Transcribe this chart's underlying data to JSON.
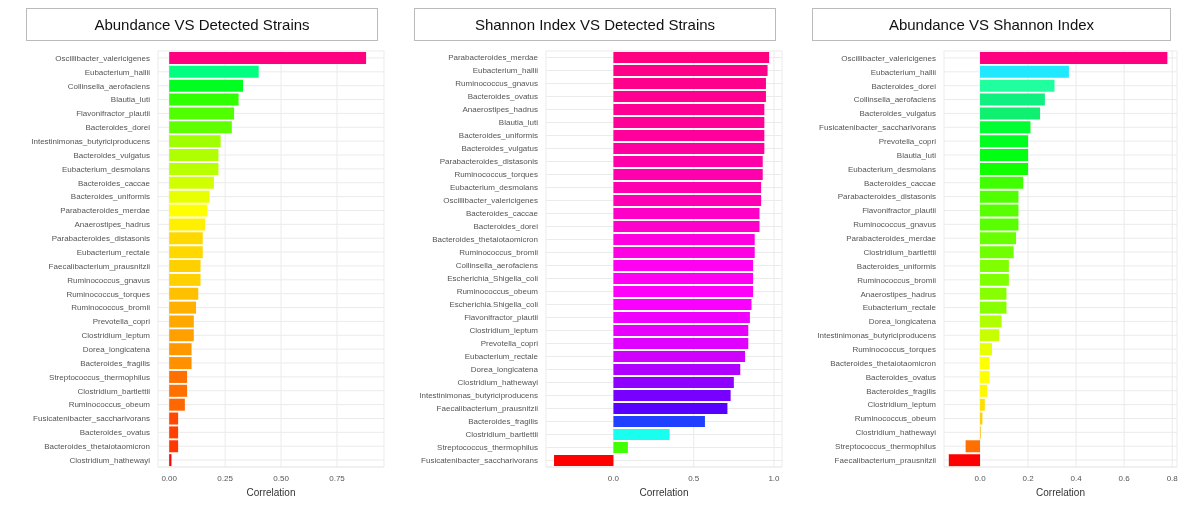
{
  "chart_data": [
    {
      "type": "bar",
      "orientation": "horizontal",
      "title": "Abundance VS Detected Strains",
      "xlabel": "Correlation",
      "grid": true,
      "categories": [
        "Oscillibacter_valericigenes",
        "Eubacterium_hallii",
        "Collinsella_aerofaciens",
        "Blautia_luti",
        "Flavonifractor_plautii",
        "Bacteroides_dorei",
        "Intestinimonas_butyriciproducens",
        "Bacteroides_vulgatus",
        "Eubacterium_desmolans",
        "Bacteroides_caccae",
        "Bacteroides_uniformis",
        "Parabacteroides_merdae",
        "Anaerostipes_hadrus",
        "Parabacteroides_distasonis",
        "Eubacterium_rectale",
        "Faecalibacterium_prausnitzii",
        "Ruminococcus_gnavus",
        "Ruminococcus_torques",
        "Ruminococcus_bromii",
        "Prevotella_copri",
        "Clostridium_leptum",
        "Dorea_longicatena",
        "Bacteroides_fragilis",
        "Streptococcus_thermophilus",
        "Clostridium_bartlettii",
        "Ruminococcus_obeum",
        "Fusicatenibacter_saccharivorans",
        "Bacteroides_ovatus",
        "Bacteroides_thetaiotaomicron",
        "Clostridium_hathewayi"
      ],
      "values": [
        0.88,
        0.4,
        0.33,
        0.31,
        0.29,
        0.28,
        0.23,
        0.22,
        0.22,
        0.2,
        0.18,
        0.17,
        0.16,
        0.15,
        0.15,
        0.14,
        0.14,
        0.13,
        0.12,
        0.11,
        0.11,
        0.1,
        0.1,
        0.08,
        0.08,
        0.07,
        0.04,
        0.04,
        0.04,
        0.01
      ],
      "colors": [
        "#ff0080",
        "#00ff80",
        "#00ff20",
        "#30ff00",
        "#50ff00",
        "#60ff00",
        "#a0ff00",
        "#b0ff00",
        "#b8ff00",
        "#d0ff00",
        "#e8ff00",
        "#ffff00",
        "#fff000",
        "#ffd800",
        "#ffd800",
        "#ffd000",
        "#ffd000",
        "#ffc000",
        "#ffb000",
        "#ffa800",
        "#ffa000",
        "#ff9800",
        "#ff9000",
        "#ff7000",
        "#ff7000",
        "#ff6800",
        "#ff4800",
        "#ff4000",
        "#ff3800",
        "#ff0000"
      ],
      "xlim": [
        -0.05,
        0.96
      ],
      "xticks": [
        {
          "value": 0,
          "label": "0.00"
        },
        0.25,
        {
          "value": 0.5,
          "label": "0.50"
        },
        0.75
      ]
    },
    {
      "type": "bar",
      "orientation": "horizontal",
      "title": "Shannon Index VS Detected Strains",
      "xlabel": "Correlation",
      "grid": true,
      "categories": [
        "Parabacteroides_merdae",
        "Eubacterium_hallii",
        "Ruminococcus_gnavus",
        "Bacteroides_ovatus",
        "Anaerostipes_hadrus",
        "Blautia_luti",
        "Bacteroides_uniformis",
        "Bacteroides_vulgatus",
        "Parabacteroides_distasonis",
        "Ruminococcus_torques",
        "Eubacterium_desmolans",
        "Oscillibacter_valericigenes",
        "Bacteroides_caccae",
        "Bacteroides_dorei",
        "Bacteroides_thetaiotaomicron",
        "Ruminococcus_bromii",
        "Collinsella_aerofaciens",
        "Escherichia_Shigella_coli",
        "Ruminococcus_obeum",
        "Escherichia.Shigella_coli",
        "Flavonifractor_plautii",
        "Clostridium_leptum",
        "Prevotella_copri",
        "Eubacterium_rectale",
        "Dorea_longicatena",
        "Clostridium_hathewayi",
        "Intestinimonas_butyriciproducens",
        "Faecalibacterium_prausnitzii",
        "Bacteroides_fragilis",
        "Clostridium_bartlettii",
        "Streptococcus_thermophilus",
        "Fusicatenibacter_saccharivorans"
      ],
      "values": [
        0.97,
        0.96,
        0.95,
        0.95,
        0.94,
        0.94,
        0.94,
        0.94,
        0.93,
        0.93,
        0.92,
        0.92,
        0.91,
        0.91,
        0.88,
        0.88,
        0.87,
        0.87,
        0.87,
        0.86,
        0.85,
        0.84,
        0.84,
        0.82,
        0.79,
        0.75,
        0.73,
        0.71,
        0.57,
        0.35,
        0.09,
        -0.37
      ],
      "colors": [
        "#ff0080",
        "#ff0088",
        "#ff008c",
        "#ff0090",
        "#ff0094",
        "#ff0098",
        "#ff009c",
        "#ff00a0",
        "#ff00a8",
        "#ff00ac",
        "#ff00b0",
        "#ff00b4",
        "#ff00c8",
        "#ff00cc",
        "#ff00e0",
        "#ff00e4",
        "#ff00f0",
        "#ff00f4",
        "#ff00f8",
        "#fa00ff",
        "#f000ff",
        "#e800ff",
        "#e000ff",
        "#d000ff",
        "#b000ff",
        "#9000ff",
        "#7800ff",
        "#5800ff",
        "#2040ff",
        "#18fff0",
        "#40ff00",
        "#ff0000"
      ],
      "xlim": [
        -0.42,
        1.05
      ],
      "xticks": [
        {
          "value": 0,
          "label": "0.0"
        },
        0.5,
        {
          "value": 1,
          "label": "1.0"
        }
      ]
    },
    {
      "type": "bar",
      "orientation": "horizontal",
      "title": "Abundance VS Shannon Index",
      "xlabel": "Correlation",
      "grid": true,
      "categories": [
        "Oscillibacter_valericigenes",
        "Eubacterium_hallii",
        "Bacteroides_dorei",
        "Collinsella_aerofaciens",
        "Bacteroides_vulgatus",
        "Fusicatenibacter_saccharivorans",
        "Prevotella_copri",
        "Blautia_luti",
        "Eubacterium_desmolans",
        "Bacteroides_caccae",
        "Parabacteroides_distasonis",
        "Flavonifractor_plautii",
        "Ruminococcus_gnavus",
        "Parabacteroides_merdae",
        "Clostridium_bartlettii",
        "Bacteroides_uniformis",
        "Ruminococcus_bromii",
        "Anaerostipes_hadrus",
        "Eubacterium_rectale",
        "Dorea_longicatena",
        "Intestinimonas_butyriciproducens",
        "Ruminococcus_torques",
        "Bacteroides_thetaiotaomicron",
        "Bacteroides_ovatus",
        "Bacteroides_fragilis",
        "Clostridium_leptum",
        "Ruminococcus_obeum",
        "Clostridium_hathewayi",
        "Streptococcus_thermophilus",
        "Faecalibacterium_prausnitzii"
      ],
      "values": [
        0.78,
        0.37,
        0.31,
        0.27,
        0.25,
        0.21,
        0.2,
        0.2,
        0.2,
        0.18,
        0.16,
        0.16,
        0.16,
        0.15,
        0.14,
        0.12,
        0.12,
        0.11,
        0.11,
        0.09,
        0.08,
        0.05,
        0.04,
        0.04,
        0.03,
        0.02,
        0.01,
        0.003,
        -0.06,
        -0.13
      ],
      "colors": [
        "#ff0080",
        "#20e8ff",
        "#20ffa0",
        "#10f080",
        "#10f070",
        "#00ff30",
        "#00ff20",
        "#00ff10",
        "#10ff00",
        "#40ff00",
        "#50ff00",
        "#58ff00",
        "#58ff00",
        "#68ff00",
        "#70ff00",
        "#80ff00",
        "#80ff00",
        "#88ff00",
        "#88ff00",
        "#b0ff00",
        "#c8ff00",
        "#e8ff00",
        "#ffff00",
        "#ffff00",
        "#fff800",
        "#ffe000",
        "#ffd000",
        "#ffc000",
        "#ff7000",
        "#ff0000"
      ],
      "xlim": [
        -0.15,
        0.82
      ],
      "xticks": [
        {
          "value": 0,
          "label": "0.0"
        },
        {
          "value": 0.2,
          "label": "0.2"
        },
        {
          "value": 0.4,
          "label": "0.4"
        },
        {
          "value": 0.6,
          "label": "0.6"
        },
        {
          "value": 0.8,
          "label": "0.8"
        }
      ]
    }
  ]
}
